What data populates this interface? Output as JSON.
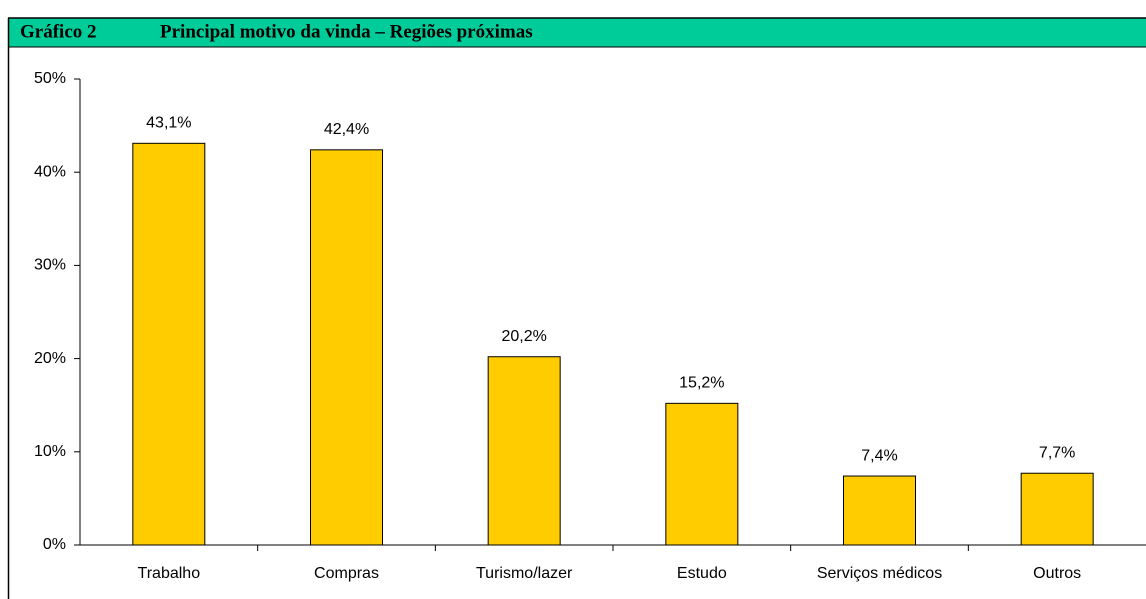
{
  "chart_data": {
    "type": "bar",
    "label": "Gráfico 2",
    "title": "Principal motivo da vinda – Regiões próximas",
    "categories": [
      "Trabalho",
      "Compras",
      "Turismo/lazer",
      "Estudo",
      "Serviços médicos",
      "Outros"
    ],
    "values": [
      43.1,
      42.4,
      20.2,
      15.2,
      7.4,
      7.7
    ],
    "value_labels": [
      "43,1%",
      "42,4%",
      "20,2%",
      "15,2%",
      "7,4%",
      "7,7%"
    ],
    "color": "#ffcc00",
    "ylim": [
      0,
      50
    ],
    "yticks": [
      {
        "value": 0,
        "label": "0%"
      },
      {
        "value": 10,
        "label": "10%"
      },
      {
        "value": 20,
        "label": "20%"
      },
      {
        "value": 30,
        "label": "30%"
      },
      {
        "value": 40,
        "label": "40%"
      },
      {
        "value": 50,
        "label": "50%"
      }
    ],
    "grid": false
  }
}
